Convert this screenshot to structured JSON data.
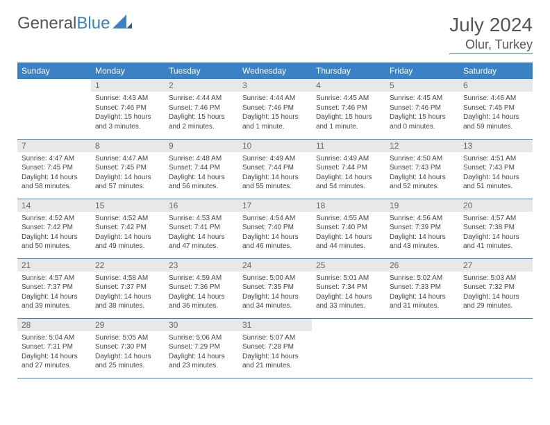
{
  "logo": {
    "text_gray": "General",
    "text_blue": "Blue"
  },
  "title": {
    "month_year": "July 2024",
    "location": "Olur, Turkey"
  },
  "colors": {
    "header_bg": "#3b82c4",
    "header_text": "#ffffff",
    "daynum_bg": "#e8e8e8",
    "daynum_text": "#666666",
    "border": "#3b82c4",
    "body_text": "#444444"
  },
  "typography": {
    "title_fontsize": 28,
    "location_fontsize": 18,
    "header_cell_fontsize": 12,
    "daynum_fontsize": 12,
    "content_fontsize": 10
  },
  "day_headers": [
    "Sunday",
    "Monday",
    "Tuesday",
    "Wednesday",
    "Thursday",
    "Friday",
    "Saturday"
  ],
  "weeks": [
    [
      null,
      {
        "d": "1",
        "sr": "Sunrise: 4:43 AM",
        "ss": "Sunset: 7:46 PM",
        "dl1": "Daylight: 15 hours",
        "dl2": "and 3 minutes."
      },
      {
        "d": "2",
        "sr": "Sunrise: 4:44 AM",
        "ss": "Sunset: 7:46 PM",
        "dl1": "Daylight: 15 hours",
        "dl2": "and 2 minutes."
      },
      {
        "d": "3",
        "sr": "Sunrise: 4:44 AM",
        "ss": "Sunset: 7:46 PM",
        "dl1": "Daylight: 15 hours",
        "dl2": "and 1 minute."
      },
      {
        "d": "4",
        "sr": "Sunrise: 4:45 AM",
        "ss": "Sunset: 7:46 PM",
        "dl1": "Daylight: 15 hours",
        "dl2": "and 1 minute."
      },
      {
        "d": "5",
        "sr": "Sunrise: 4:45 AM",
        "ss": "Sunset: 7:46 PM",
        "dl1": "Daylight: 15 hours",
        "dl2": "and 0 minutes."
      },
      {
        "d": "6",
        "sr": "Sunrise: 4:46 AM",
        "ss": "Sunset: 7:45 PM",
        "dl1": "Daylight: 14 hours",
        "dl2": "and 59 minutes."
      }
    ],
    [
      {
        "d": "7",
        "sr": "Sunrise: 4:47 AM",
        "ss": "Sunset: 7:45 PM",
        "dl1": "Daylight: 14 hours",
        "dl2": "and 58 minutes."
      },
      {
        "d": "8",
        "sr": "Sunrise: 4:47 AM",
        "ss": "Sunset: 7:45 PM",
        "dl1": "Daylight: 14 hours",
        "dl2": "and 57 minutes."
      },
      {
        "d": "9",
        "sr": "Sunrise: 4:48 AM",
        "ss": "Sunset: 7:44 PM",
        "dl1": "Daylight: 14 hours",
        "dl2": "and 56 minutes."
      },
      {
        "d": "10",
        "sr": "Sunrise: 4:49 AM",
        "ss": "Sunset: 7:44 PM",
        "dl1": "Daylight: 14 hours",
        "dl2": "and 55 minutes."
      },
      {
        "d": "11",
        "sr": "Sunrise: 4:49 AM",
        "ss": "Sunset: 7:44 PM",
        "dl1": "Daylight: 14 hours",
        "dl2": "and 54 minutes."
      },
      {
        "d": "12",
        "sr": "Sunrise: 4:50 AM",
        "ss": "Sunset: 7:43 PM",
        "dl1": "Daylight: 14 hours",
        "dl2": "and 52 minutes."
      },
      {
        "d": "13",
        "sr": "Sunrise: 4:51 AM",
        "ss": "Sunset: 7:43 PM",
        "dl1": "Daylight: 14 hours",
        "dl2": "and 51 minutes."
      }
    ],
    [
      {
        "d": "14",
        "sr": "Sunrise: 4:52 AM",
        "ss": "Sunset: 7:42 PM",
        "dl1": "Daylight: 14 hours",
        "dl2": "and 50 minutes."
      },
      {
        "d": "15",
        "sr": "Sunrise: 4:52 AM",
        "ss": "Sunset: 7:42 PM",
        "dl1": "Daylight: 14 hours",
        "dl2": "and 49 minutes."
      },
      {
        "d": "16",
        "sr": "Sunrise: 4:53 AM",
        "ss": "Sunset: 7:41 PM",
        "dl1": "Daylight: 14 hours",
        "dl2": "and 47 minutes."
      },
      {
        "d": "17",
        "sr": "Sunrise: 4:54 AM",
        "ss": "Sunset: 7:40 PM",
        "dl1": "Daylight: 14 hours",
        "dl2": "and 46 minutes."
      },
      {
        "d": "18",
        "sr": "Sunrise: 4:55 AM",
        "ss": "Sunset: 7:40 PM",
        "dl1": "Daylight: 14 hours",
        "dl2": "and 44 minutes."
      },
      {
        "d": "19",
        "sr": "Sunrise: 4:56 AM",
        "ss": "Sunset: 7:39 PM",
        "dl1": "Daylight: 14 hours",
        "dl2": "and 43 minutes."
      },
      {
        "d": "20",
        "sr": "Sunrise: 4:57 AM",
        "ss": "Sunset: 7:38 PM",
        "dl1": "Daylight: 14 hours",
        "dl2": "and 41 minutes."
      }
    ],
    [
      {
        "d": "21",
        "sr": "Sunrise: 4:57 AM",
        "ss": "Sunset: 7:37 PM",
        "dl1": "Daylight: 14 hours",
        "dl2": "and 39 minutes."
      },
      {
        "d": "22",
        "sr": "Sunrise: 4:58 AM",
        "ss": "Sunset: 7:37 PM",
        "dl1": "Daylight: 14 hours",
        "dl2": "and 38 minutes."
      },
      {
        "d": "23",
        "sr": "Sunrise: 4:59 AM",
        "ss": "Sunset: 7:36 PM",
        "dl1": "Daylight: 14 hours",
        "dl2": "and 36 minutes."
      },
      {
        "d": "24",
        "sr": "Sunrise: 5:00 AM",
        "ss": "Sunset: 7:35 PM",
        "dl1": "Daylight: 14 hours",
        "dl2": "and 34 minutes."
      },
      {
        "d": "25",
        "sr": "Sunrise: 5:01 AM",
        "ss": "Sunset: 7:34 PM",
        "dl1": "Daylight: 14 hours",
        "dl2": "and 33 minutes."
      },
      {
        "d": "26",
        "sr": "Sunrise: 5:02 AM",
        "ss": "Sunset: 7:33 PM",
        "dl1": "Daylight: 14 hours",
        "dl2": "and 31 minutes."
      },
      {
        "d": "27",
        "sr": "Sunrise: 5:03 AM",
        "ss": "Sunset: 7:32 PM",
        "dl1": "Daylight: 14 hours",
        "dl2": "and 29 minutes."
      }
    ],
    [
      {
        "d": "28",
        "sr": "Sunrise: 5:04 AM",
        "ss": "Sunset: 7:31 PM",
        "dl1": "Daylight: 14 hours",
        "dl2": "and 27 minutes."
      },
      {
        "d": "29",
        "sr": "Sunrise: 5:05 AM",
        "ss": "Sunset: 7:30 PM",
        "dl1": "Daylight: 14 hours",
        "dl2": "and 25 minutes."
      },
      {
        "d": "30",
        "sr": "Sunrise: 5:06 AM",
        "ss": "Sunset: 7:29 PM",
        "dl1": "Daylight: 14 hours",
        "dl2": "and 23 minutes."
      },
      {
        "d": "31",
        "sr": "Sunrise: 5:07 AM",
        "ss": "Sunset: 7:28 PM",
        "dl1": "Daylight: 14 hours",
        "dl2": "and 21 minutes."
      },
      null,
      null,
      null
    ]
  ]
}
